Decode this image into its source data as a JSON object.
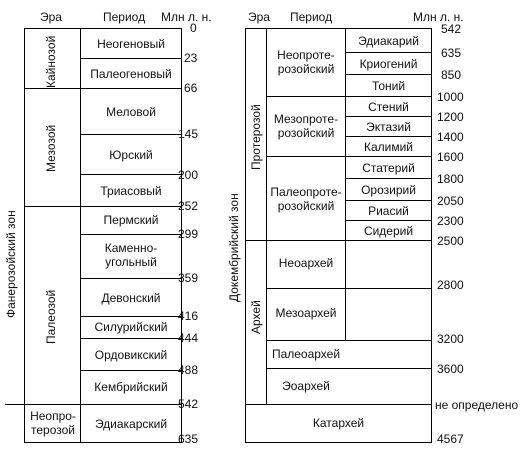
{
  "headers": {
    "era": "Эра",
    "period": "Период",
    "mya": "Млн л. н."
  },
  "left": {
    "eon": "Фанерозойский зон",
    "eras": [
      "Кайнозой",
      "Мезозой",
      "Палеозой",
      "Неопро-\nтерозой"
    ],
    "periods": [
      "Неогеновый",
      "Палеогеновый",
      "Меловой",
      "Юрский",
      "Триасовый",
      "Пермский",
      "Каменно-\nугольный",
      "Девонский",
      "Силурийский",
      "Ордовикский",
      "Кембрийский",
      "Эдиакарский"
    ],
    "ages": [
      "0",
      "23",
      "66",
      "145",
      "200",
      "252",
      "299",
      "359",
      "416",
      "444",
      "488",
      "542",
      "635"
    ]
  },
  "right": {
    "eon": "Докембрийский зон",
    "eras": [
      "Протерозой",
      "Архей"
    ],
    "subeons": [
      "Неопроте-\nрозойский",
      "Мезопроте-\nрозойский",
      "Палеопроте-\nрозойский"
    ],
    "periods": [
      "Эдиакарий",
      "Криогений",
      "Тоний",
      "Стений",
      "Эктазий",
      "Калимий",
      "Статерий",
      "Орозирий",
      "Риасий",
      "Сидерий"
    ],
    "archean_eras": [
      "Неоархей",
      "Мезоархей",
      "Палеоархей",
      "Эоархей"
    ],
    "katarchean": "Катархей",
    "ages": [
      "542",
      "635",
      "850",
      "1000",
      "1200",
      "1400",
      "1600",
      "1800",
      "2050",
      "2300",
      "2500",
      "2800",
      "3200",
      "3600",
      "не определено",
      "4567"
    ]
  }
}
